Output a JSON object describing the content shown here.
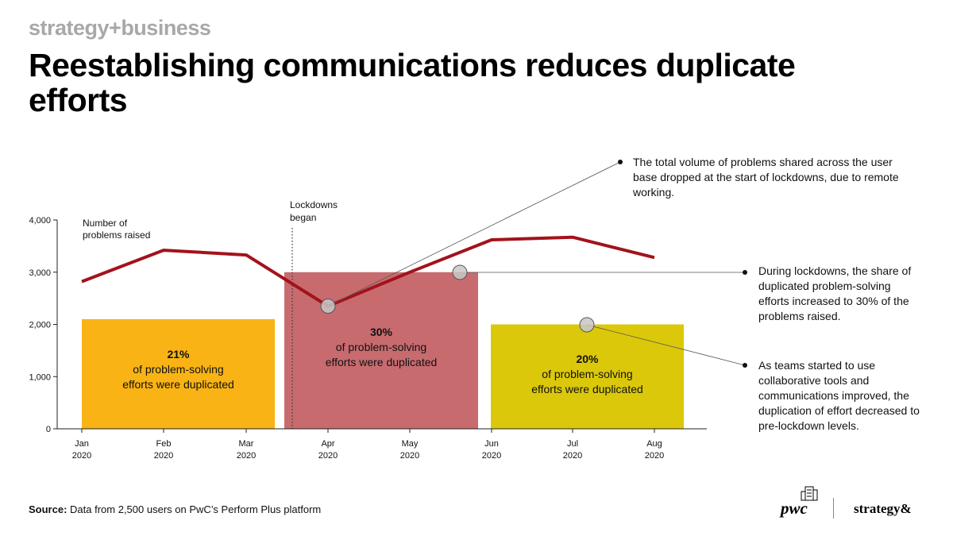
{
  "header": {
    "brand": "strategy+business",
    "title": "Reestablishing communications reduces duplicate efforts"
  },
  "chart_data": {
    "type": "line",
    "categories": [
      "Jan\n2020",
      "Feb\n2020",
      "Mar\n2020",
      "Apr\n2020",
      "May\n2020",
      "Jun\n2020",
      "Jul\n2020",
      "Aug\n2020"
    ],
    "ylim": [
      0,
      4000
    ],
    "yticks": [
      0,
      1000,
      2000,
      3000,
      4000
    ],
    "ytick_labels": [
      "0",
      "1,000",
      "2,000",
      "3,000",
      "4,000"
    ],
    "series": [
      {
        "name": "Number of problems raised",
        "values": [
          2820,
          3420,
          3330,
          2350,
          3000,
          3620,
          3670,
          3280
        ],
        "color": "#a3121b"
      }
    ],
    "periods": [
      {
        "start": 0,
        "end": 2,
        "value": 2100,
        "pct": "21%",
        "text": "of problem-solving efforts were duplicated",
        "color": "#f9b314"
      },
      {
        "start": 3,
        "end": 4,
        "value": 3000,
        "pct": "30%",
        "text": "of problem-solving efforts were duplicated",
        "color": "#c76b6f"
      },
      {
        "start": 5,
        "end": 7,
        "value": 2000,
        "pct": "20%",
        "text": "of problem-solving efforts were duplicated",
        "color": "#dbc80a"
      }
    ],
    "lockdown_label": "Lockdowns began",
    "grid": false
  },
  "annotations": [
    {
      "text": "The total volume of problems shared across the user base dropped at the start of lockdowns, due to remote working."
    },
    {
      "text": "During lockdowns, the share of duplicated problem-solving efforts increased to 30% of the problems raised."
    },
    {
      "text": "As teams started to use collaborative tools and communications improved, the duplication of effort decreased to pre-lockdown levels."
    }
  ],
  "footer": {
    "source_label": "Source:",
    "source_text": "Data from 2,500 users on PwC’s Perform Plus platform",
    "logo_left": "pwc",
    "logo_right": "strategy&"
  }
}
